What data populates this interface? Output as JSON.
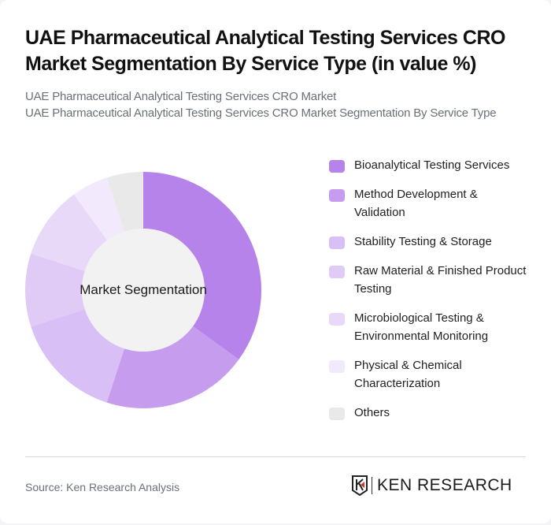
{
  "header": {
    "title": "UAE Pharmaceutical Analytical Testing Services CRO Market Segmentation By Service Type (in value %)",
    "subtitle_line1": "UAE Pharmaceutical Analytical Testing Services CRO Market",
    "subtitle_line2": "UAE Pharmaceutical Analytical Testing Services CRO Market Segmentation By Service Type"
  },
  "chart": {
    "center_label": "Market Segmentation"
  },
  "legend": {
    "items": [
      {
        "label": "Bioanalytical Testing Services",
        "color": "#b583ea"
      },
      {
        "label": "Method Development & Validation",
        "color": "#c69dee"
      },
      {
        "label": "Stability Testing & Storage",
        "color": "#d8bff5"
      },
      {
        "label": "Raw Material & Finished Product Testing",
        "color": "#e0cbf6"
      },
      {
        "label": "Microbiological Testing & Environmental Monitoring",
        "color": "#e8d9f8"
      },
      {
        "label": "Physical & Chemical Characterization",
        "color": "#f2eafc"
      },
      {
        "label": "Others",
        "color": "#e9e9e9"
      }
    ]
  },
  "footer": {
    "source": "Source: Ken Research Analysis",
    "logo_text": "KEN RESEARCH"
  },
  "chart_data": {
    "type": "pie",
    "variant": "donut",
    "title": "UAE Pharmaceutical Analytical Testing Services CRO Market Segmentation By Service Type (in value %)",
    "center_label": "Market Segmentation",
    "categories": [
      "Bioanalytical Testing Services",
      "Method Development & Validation",
      "Stability Testing & Storage",
      "Raw Material & Finished Product Testing",
      "Microbiological Testing & Environmental Monitoring",
      "Physical & Chemical Characterization",
      "Others"
    ],
    "values": [
      35,
      20,
      15,
      10,
      10,
      5,
      5
    ],
    "colors": [
      "#b583ea",
      "#c69dee",
      "#d8bff5",
      "#e0cbf6",
      "#e8d9f8",
      "#f2eafc",
      "#e9e9e9"
    ],
    "unit": "%",
    "legend_position": "right"
  }
}
